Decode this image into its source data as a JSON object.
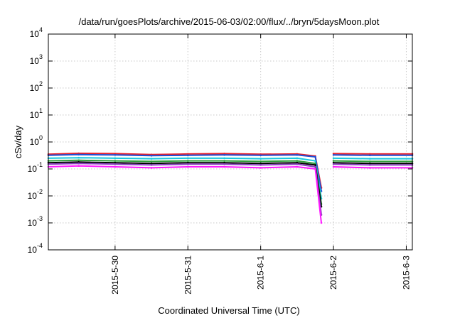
{
  "chart_data": {
    "type": "line",
    "title": "/data/run/goesPlots/archive/2015-06-03/02:00/flux/../bryn/5daysMoon.plot",
    "xlabel": "Coordinated Universal Time (UTC)",
    "ylabel": "cSv/day",
    "yscale": "log",
    "ylim": [
      0.0001,
      10000
    ],
    "xlim": [
      "2015-05-29T02:00",
      "2015-06-03T02:00"
    ],
    "grid": true,
    "y_ticks": [
      {
        "value": 0.0001,
        "base": "10",
        "exp": "-4"
      },
      {
        "value": 0.001,
        "base": "10",
        "exp": "-3"
      },
      {
        "value": 0.01,
        "base": "10",
        "exp": "-2"
      },
      {
        "value": 0.1,
        "base": "10",
        "exp": "-1"
      },
      {
        "value": 1,
        "base": "10",
        "exp": "0"
      },
      {
        "value": 10,
        "base": "10",
        "exp": "1"
      },
      {
        "value": 100,
        "base": "10",
        "exp": "2"
      },
      {
        "value": 1000,
        "base": "10",
        "exp": "3"
      },
      {
        "value": 10000,
        "base": "10",
        "exp": "4"
      }
    ],
    "x_ticks": [
      {
        "value": "2015-05-30T00:00",
        "label": "2015-5-30"
      },
      {
        "value": "2015-05-31T00:00",
        "label": "2015-5-31"
      },
      {
        "value": "2015-06-01T00:00",
        "label": "2015-6-1"
      },
      {
        "value": "2015-06-02T00:00",
        "label": "2015-6-2"
      },
      {
        "value": "2015-06-03T00:00",
        "label": "2015-6-3"
      }
    ],
    "x": [
      "2015-05-29T02:00",
      "2015-05-29T12:00",
      "2015-05-30T00:00",
      "2015-05-30T12:00",
      "2015-05-31T00:00",
      "2015-05-31T12:00",
      "2015-06-01T00:00",
      "2015-06-01T12:00",
      "2015-06-01T18:00",
      "2015-06-01T20:00",
      "2015-06-01T22:00",
      "2015-06-02T00:00",
      "2015-06-02T12:00",
      "2015-06-03T02:00"
    ],
    "series": [
      {
        "color": "#e8202a",
        "values": [
          0.35,
          0.38,
          0.37,
          0.34,
          0.36,
          0.37,
          0.35,
          0.36,
          0.3,
          0.02,
          null,
          0.37,
          0.36,
          0.36
        ]
      },
      {
        "color": "#1f4fd6",
        "values": [
          0.32,
          0.34,
          0.33,
          0.31,
          0.32,
          0.33,
          0.32,
          0.33,
          0.28,
          0.015,
          null,
          0.33,
          0.32,
          0.32
        ]
      },
      {
        "color": "#19c8e0",
        "values": [
          0.25,
          0.26,
          0.25,
          0.24,
          0.25,
          0.25,
          0.24,
          0.25,
          0.2,
          0.008,
          null,
          0.25,
          0.24,
          0.24
        ]
      },
      {
        "color": "#2f9e3a",
        "values": [
          0.2,
          0.21,
          0.2,
          0.19,
          0.2,
          0.2,
          0.19,
          0.2,
          0.16,
          0.005,
          null,
          0.2,
          0.19,
          0.19
        ]
      },
      {
        "color": "#000000",
        "values": [
          0.17,
          0.18,
          0.17,
          0.16,
          0.17,
          0.17,
          0.16,
          0.17,
          0.14,
          0.004,
          null,
          0.17,
          0.16,
          0.16
        ]
      },
      {
        "color": "#8a3fbf",
        "values": [
          0.15,
          0.16,
          0.15,
          0.14,
          0.15,
          0.15,
          0.14,
          0.15,
          0.12,
          0.002,
          null,
          0.15,
          0.14,
          0.14
        ]
      },
      {
        "color": "#ff19ff",
        "values": [
          0.12,
          0.13,
          0.12,
          0.11,
          0.12,
          0.12,
          0.11,
          0.12,
          0.1,
          0.001,
          null,
          0.12,
          0.11,
          0.11
        ]
      }
    ],
    "colors": {
      "frame": "#000000",
      "grid": "#c8c8c8"
    }
  }
}
